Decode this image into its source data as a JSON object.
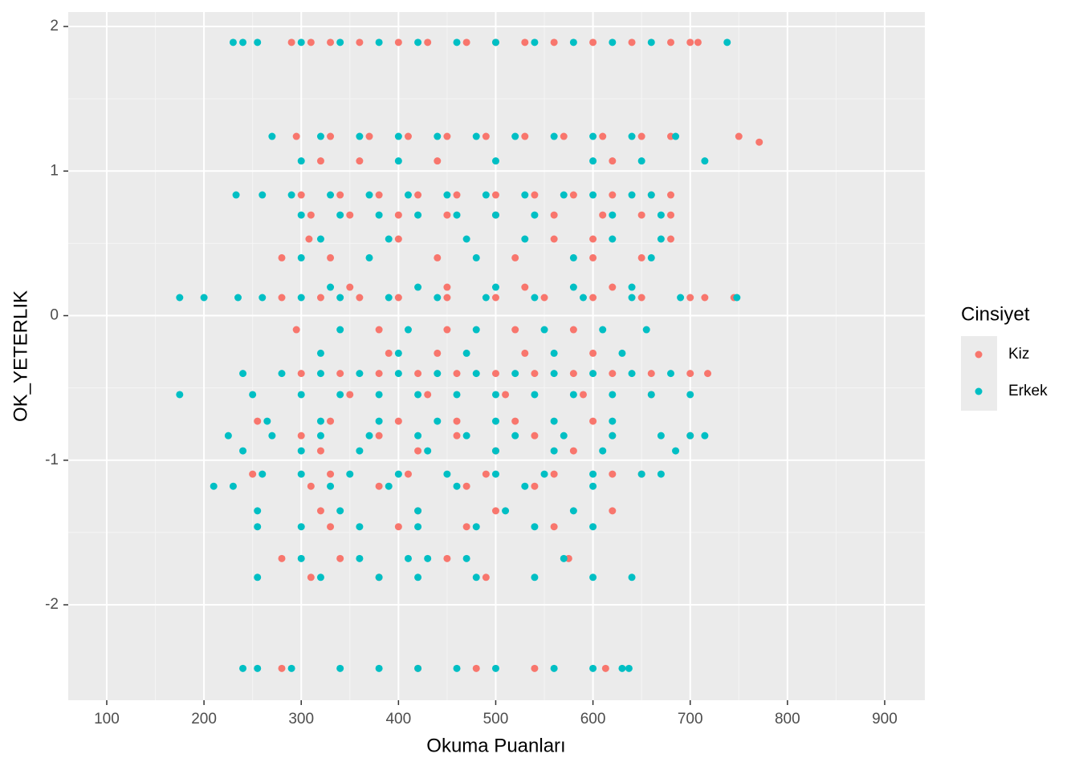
{
  "chart_data": {
    "type": "scatter",
    "x_label": "Okuma Puanları",
    "y_label": "OK_YETERLIK",
    "legend_title": "Cinsiyet",
    "xlim": [
      60.4,
      941.3
    ],
    "ylim": [
      -2.66,
      2.1
    ],
    "xticks": [
      100,
      200,
      300,
      400,
      500,
      600,
      700,
      800,
      900
    ],
    "yticks": [
      -2,
      -1,
      0,
      1,
      2
    ],
    "grid": true,
    "legend_position": "right",
    "series": [
      {
        "name": "Kiz",
        "color": "#F8766D",
        "x": [
          290,
          310,
          330,
          360,
          400,
          430,
          470,
          500,
          530,
          560,
          600,
          640,
          680,
          700,
          708,
          295,
          330,
          370,
          410,
          450,
          490,
          530,
          570,
          610,
          650,
          680,
          750,
          771,
          320,
          360,
          440,
          620,
          300,
          340,
          380,
          420,
          460,
          500,
          540,
          580,
          620,
          660,
          680,
          310,
          350,
          400,
          450,
          500,
          560,
          610,
          650,
          680,
          308,
          400,
          560,
          600,
          680,
          280,
          330,
          440,
          520,
          600,
          650,
          350,
          450,
          530,
          620,
          280,
          320,
          360,
          400,
          450,
          500,
          550,
          600,
          650,
          700,
          715,
          745,
          295,
          380,
          450,
          520,
          580,
          390,
          440,
          530,
          600,
          300,
          340,
          380,
          420,
          460,
          500,
          540,
          580,
          620,
          660,
          700,
          718,
          350,
          430,
          510,
          590,
          660,
          255,
          330,
          400,
          460,
          520,
          600,
          300,
          380,
          460,
          540,
          620,
          700,
          320,
          420,
          500,
          580,
          250,
          330,
          410,
          490,
          560,
          620,
          650,
          310,
          380,
          470,
          540,
          320,
          420,
          500,
          620,
          330,
          400,
          470,
          560,
          280,
          340,
          450,
          575,
          310,
          380,
          490,
          280,
          420,
          480,
          540,
          613
        ],
        "values": [
          1.89,
          1.89,
          1.89,
          1.89,
          1.89,
          1.89,
          1.89,
          1.89,
          1.89,
          1.89,
          1.89,
          1.89,
          1.89,
          1.89,
          1.89,
          1.24,
          1.24,
          1.24,
          1.24,
          1.24,
          1.24,
          1.24,
          1.24,
          1.24,
          1.24,
          1.24,
          1.24,
          1.2,
          1.07,
          1.07,
          1.07,
          1.07,
          0.835,
          0.835,
          0.835,
          0.835,
          0.835,
          0.835,
          0.835,
          0.835,
          0.835,
          0.835,
          0.835,
          0.696,
          0.696,
          0.696,
          0.696,
          0.696,
          0.696,
          0.696,
          0.696,
          0.696,
          0.53,
          0.53,
          0.53,
          0.53,
          0.53,
          0.4,
          0.4,
          0.4,
          0.4,
          0.4,
          0.4,
          0.197,
          0.197,
          0.197,
          0.197,
          0.125,
          0.125,
          0.125,
          0.125,
          0.125,
          0.125,
          0.125,
          0.125,
          0.125,
          0.125,
          0.125,
          0.125,
          -0.097,
          -0.097,
          -0.097,
          -0.097,
          -0.097,
          -0.26,
          -0.26,
          -0.26,
          -0.26,
          -0.4,
          -0.4,
          -0.4,
          -0.4,
          -0.4,
          -0.4,
          -0.4,
          -0.4,
          -0.4,
          -0.4,
          -0.4,
          -0.4,
          -0.546,
          -0.546,
          -0.546,
          -0.546,
          -0.546,
          -0.73,
          -0.73,
          -0.73,
          -0.73,
          -0.73,
          -0.73,
          -0.83,
          -0.83,
          -0.83,
          -0.83,
          -0.83,
          -0.83,
          -0.935,
          -0.935,
          -0.935,
          -0.935,
          -1.096,
          -1.096,
          -1.096,
          -1.096,
          -1.096,
          -1.096,
          -1.096,
          -1.18,
          -1.18,
          -1.18,
          -1.18,
          -1.35,
          -1.35,
          -1.35,
          -1.35,
          -1.46,
          -1.46,
          -1.46,
          -1.46,
          -1.68,
          -1.68,
          -1.68,
          -1.68,
          -1.81,
          -1.81,
          -1.81,
          -2.44,
          -2.44,
          -2.44,
          -2.44,
          -2.44
        ]
      },
      {
        "name": "Erkek",
        "color": "#00BFC4",
        "x": [
          230,
          240,
          255,
          300,
          340,
          380,
          420,
          460,
          500,
          540,
          580,
          620,
          660,
          738,
          270,
          320,
          360,
          400,
          440,
          480,
          520,
          560,
          600,
          640,
          685,
          300,
          400,
          500,
          600,
          650,
          715,
          233,
          260,
          290,
          330,
          370,
          410,
          450,
          490,
          530,
          570,
          600,
          640,
          660,
          300,
          340,
          380,
          420,
          460,
          500,
          540,
          620,
          670,
          320,
          390,
          470,
          530,
          620,
          670,
          300,
          370,
          480,
          580,
          660,
          330,
          420,
          500,
          580,
          640,
          175,
          200,
          235,
          260,
          300,
          340,
          390,
          440,
          490,
          540,
          590,
          640,
          690,
          748,
          340,
          410,
          480,
          550,
          610,
          655,
          320,
          400,
          470,
          560,
          630,
          240,
          280,
          320,
          360,
          400,
          440,
          480,
          520,
          560,
          600,
          640,
          680,
          175,
          250,
          300,
          340,
          380,
          420,
          460,
          500,
          540,
          580,
          620,
          660,
          700,
          265,
          320,
          380,
          440,
          500,
          560,
          620,
          225,
          270,
          320,
          370,
          420,
          470,
          520,
          570,
          620,
          670,
          700,
          715,
          240,
          300,
          360,
          430,
          500,
          560,
          610,
          685,
          260,
          300,
          350,
          400,
          450,
          500,
          550,
          600,
          650,
          670,
          210,
          230,
          330,
          390,
          460,
          530,
          600,
          255,
          340,
          420,
          510,
          580,
          255,
          300,
          360,
          420,
          480,
          540,
          600,
          300,
          360,
          410,
          430,
          470,
          570,
          255,
          320,
          380,
          420,
          480,
          540,
          600,
          640,
          240,
          255,
          290,
          340,
          380,
          420,
          460,
          500,
          560,
          600,
          630,
          637
        ],
        "values": [
          1.89,
          1.89,
          1.89,
          1.89,
          1.89,
          1.89,
          1.89,
          1.89,
          1.89,
          1.89,
          1.89,
          1.89,
          1.89,
          1.89,
          1.24,
          1.24,
          1.24,
          1.24,
          1.24,
          1.24,
          1.24,
          1.24,
          1.24,
          1.24,
          1.24,
          1.07,
          1.07,
          1.07,
          1.07,
          1.07,
          1.07,
          0.835,
          0.835,
          0.835,
          0.835,
          0.835,
          0.835,
          0.835,
          0.835,
          0.835,
          0.835,
          0.835,
          0.835,
          0.835,
          0.696,
          0.696,
          0.696,
          0.696,
          0.696,
          0.696,
          0.696,
          0.696,
          0.696,
          0.53,
          0.53,
          0.53,
          0.53,
          0.53,
          0.53,
          0.4,
          0.4,
          0.4,
          0.4,
          0.4,
          0.197,
          0.197,
          0.197,
          0.197,
          0.197,
          0.125,
          0.125,
          0.125,
          0.125,
          0.125,
          0.125,
          0.125,
          0.125,
          0.125,
          0.125,
          0.125,
          0.125,
          0.125,
          0.125,
          -0.097,
          -0.097,
          -0.097,
          -0.097,
          -0.097,
          -0.097,
          -0.26,
          -0.26,
          -0.26,
          -0.26,
          -0.26,
          -0.4,
          -0.4,
          -0.4,
          -0.4,
          -0.4,
          -0.4,
          -0.4,
          -0.4,
          -0.4,
          -0.4,
          -0.4,
          -0.4,
          -0.546,
          -0.546,
          -0.546,
          -0.546,
          -0.546,
          -0.546,
          -0.546,
          -0.546,
          -0.546,
          -0.546,
          -0.546,
          -0.546,
          -0.546,
          -0.73,
          -0.73,
          -0.73,
          -0.73,
          -0.73,
          -0.73,
          -0.73,
          -0.83,
          -0.83,
          -0.83,
          -0.83,
          -0.83,
          -0.83,
          -0.83,
          -0.83,
          -0.83,
          -0.83,
          -0.83,
          -0.83,
          -0.935,
          -0.935,
          -0.935,
          -0.935,
          -0.935,
          -0.935,
          -0.935,
          -0.935,
          -1.096,
          -1.096,
          -1.096,
          -1.096,
          -1.096,
          -1.096,
          -1.096,
          -1.096,
          -1.096,
          -1.096,
          -1.18,
          -1.18,
          -1.18,
          -1.18,
          -1.18,
          -1.18,
          -1.18,
          -1.35,
          -1.35,
          -1.35,
          -1.35,
          -1.35,
          -1.46,
          -1.46,
          -1.46,
          -1.46,
          -1.46,
          -1.46,
          -1.46,
          -1.68,
          -1.68,
          -1.68,
          -1.68,
          -1.68,
          -1.68,
          -1.81,
          -1.81,
          -1.81,
          -1.81,
          -1.81,
          -1.81,
          -1.81,
          -1.81,
          -2.44,
          -2.44,
          -2.44,
          -2.44,
          -2.44,
          -2.44,
          -2.44,
          -2.44,
          -2.44,
          -2.44,
          -2.44,
          -2.44
        ]
      }
    ]
  }
}
